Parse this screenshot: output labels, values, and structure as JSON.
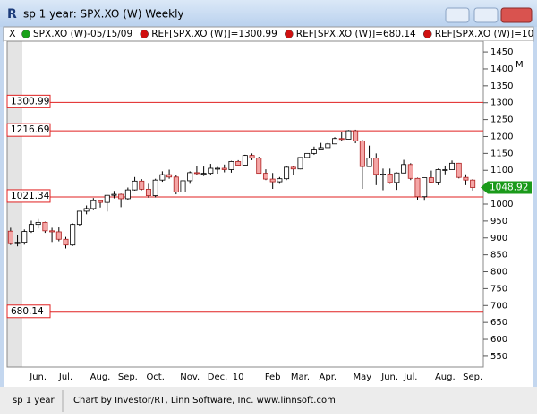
{
  "window": {
    "title": "sp 1 year: SPX.XO (W) Weekly"
  },
  "legend": [
    {
      "text": "SPX.XO (W)-05/15/09",
      "color": "#1aa01a"
    },
    {
      "text": "REF[SPX.XO (W)]=1300.99",
      "color": "#d01010"
    },
    {
      "text": "REF[SPX.XO (W)]=680.14",
      "color": "#d01010"
    },
    {
      "text": "REF[SPX.XO (W)]=10",
      "color": "#d01010"
    }
  ],
  "chart_data": {
    "type": "candlestick",
    "axis_flag": "M",
    "categories": [
      null,
      null,
      null,
      null,
      "Jun.",
      null,
      null,
      null,
      "Jul.",
      null,
      null,
      null,
      null,
      "Aug.",
      null,
      null,
      null,
      "Sep.",
      null,
      null,
      null,
      "Oct.",
      null,
      null,
      null,
      null,
      "Nov.",
      null,
      null,
      null,
      "Dec.",
      null,
      null,
      "10",
      null,
      null,
      null,
      null,
      "Feb",
      null,
      null,
      null,
      "Mar.",
      null,
      null,
      null,
      "Apr.",
      null,
      null,
      null,
      null,
      "May",
      null,
      null,
      null,
      "Jun.",
      null,
      null,
      "Jul.",
      null,
      null,
      null,
      null,
      "Aug.",
      null,
      null,
      null,
      "Sep."
    ],
    "open": [
      920,
      883,
      887,
      919,
      940,
      946,
      921,
      918,
      896,
      879,
      940,
      979,
      987,
      1010,
      1005,
      1026,
      1029,
      1016,
      1042,
      1068,
      1044,
      1025,
      1071,
      1087,
      1080,
      1036,
      1069,
      1093,
      1091,
      1091,
      1106,
      1106,
      1102,
      1126,
      1115,
      1144,
      1136,
      1091,
      1074,
      1066,
      1075,
      1109,
      1104,
      1138,
      1150,
      1160,
      1167,
      1178,
      1194,
      1192,
      1217,
      1187,
      1111,
      1136,
      1088,
      1089,
      1064,
      1092,
      1117,
      1076,
      1022,
      1078,
      1065,
      1102,
      1102,
      1121,
      1079,
      1071
    ],
    "high": [
      930,
      910,
      925,
      951,
      956,
      948,
      930,
      931,
      903,
      943,
      980,
      996,
      1018,
      1013,
      1027,
      1039,
      1031,
      1049,
      1080,
      1074,
      1060,
      1075,
      1097,
      1102,
      1085,
      1072,
      1097,
      1113,
      1111,
      1119,
      1110,
      1117,
      1128,
      1130,
      1146,
      1150,
      1140,
      1103,
      1092,
      1080,
      1112,
      1112,
      1139,
      1151,
      1170,
      1181,
      1181,
      1198,
      1214,
      1219,
      1220,
      1190,
      1173,
      1150,
      1105,
      1105,
      1094,
      1131,
      1121,
      1078,
      1078,
      1099,
      1105,
      1114,
      1129,
      1122,
      1088,
      1074
    ],
    "low": [
      879,
      875,
      880,
      915,
      928,
      915,
      888,
      890,
      869,
      876,
      934,
      970,
      982,
      990,
      978,
      1017,
      991,
      1013,
      1040,
      1041,
      1019,
      1020,
      1066,
      1075,
      1029,
      1033,
      1060,
      1087,
      1083,
      1086,
      1090,
      1094,
      1093,
      1114,
      1114,
      1130,
      1090,
      1071,
      1045,
      1060,
      1071,
      1086,
      1103,
      1138,
      1146,
      1160,
      1167,
      1178,
      1186,
      1192,
      1180,
      1045,
      1111,
      1056,
      1041,
      1060,
      1042,
      1091,
      1071,
      1011,
      1010,
      1061,
      1056,
      1088,
      1102,
      1076,
      1056,
      1040
    ],
    "close": [
      883,
      887,
      919,
      940,
      946,
      921,
      918,
      896,
      879,
      940,
      979,
      987,
      1010,
      1005,
      1026,
      1029,
      1016,
      1042,
      1068,
      1044,
      1025,
      1071,
      1087,
      1080,
      1036,
      1069,
      1093,
      1091,
      1091,
      1106,
      1106,
      1102,
      1126,
      1115,
      1144,
      1136,
      1091,
      1074,
      1066,
      1075,
      1109,
      1104,
      1138,
      1150,
      1160,
      1167,
      1178,
      1194,
      1192,
      1217,
      1187,
      1111,
      1136,
      1088,
      1089,
      1064,
      1092,
      1117,
      1076,
      1022,
      1078,
      1065,
      1102,
      1102,
      1121,
      1079,
      1071,
      1048.92
    ],
    "up_color": "#ffffff",
    "down_color": "#f4a6a6",
    "last_color": "#1a9a1a",
    "reference_lines": [
      1300.99,
      1216.69,
      1021.34,
      680.14
    ],
    "reference_color": "#e02020",
    "ylim": [
      518,
      1482
    ],
    "yticks": [
      550,
      600,
      650,
      700,
      750,
      800,
      850,
      900,
      950,
      1000,
      1050,
      1100,
      1150,
      1200,
      1250,
      1300,
      1350,
      1400,
      1450
    ]
  },
  "status": {
    "left": "sp 1 year",
    "right": "Chart by Investor/RT, Linn Software, Inc. www.linnsoft.com"
  }
}
